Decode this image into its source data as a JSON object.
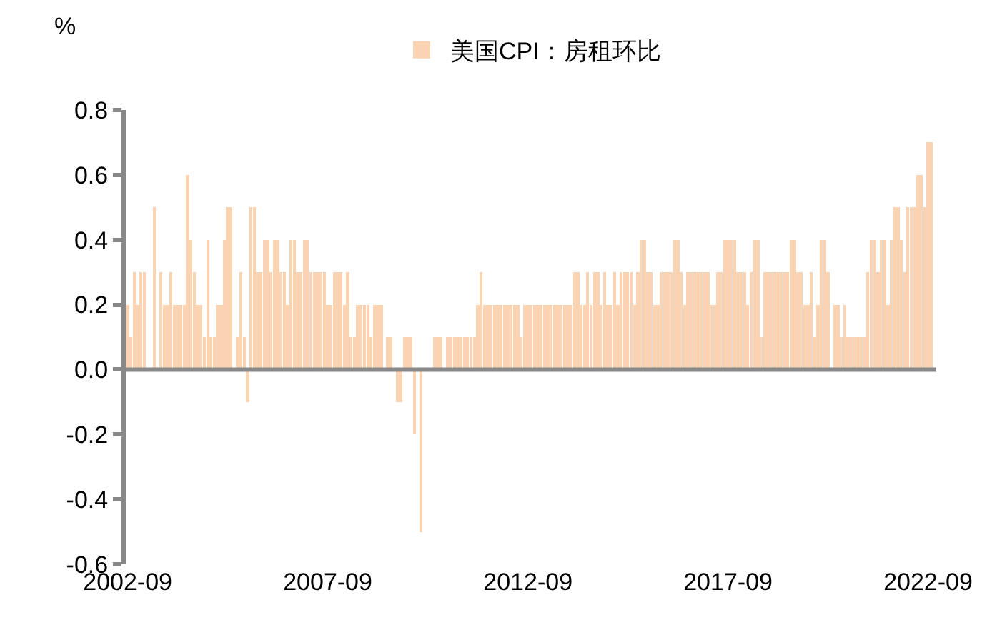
{
  "chart_data": {
    "type": "bar",
    "ylabel": "%",
    "legend": "top",
    "x": [
      "2002-09",
      "2002-10",
      "2002-11",
      "2002-12",
      "2003-01",
      "2003-02",
      "2003-03",
      "2003-04",
      "2003-05",
      "2003-06",
      "2003-07",
      "2003-08",
      "2003-09",
      "2003-10",
      "2003-11",
      "2003-12",
      "2004-01",
      "2004-02",
      "2004-03",
      "2004-04",
      "2004-05",
      "2004-06",
      "2004-07",
      "2004-08",
      "2004-09",
      "2004-10",
      "2004-11",
      "2004-12",
      "2005-01",
      "2005-02",
      "2005-03",
      "2005-04",
      "2005-05",
      "2005-06",
      "2005-07",
      "2005-08",
      "2005-09",
      "2005-10",
      "2005-11",
      "2005-12",
      "2006-01",
      "2006-02",
      "2006-03",
      "2006-04",
      "2006-05",
      "2006-06",
      "2006-07",
      "2006-08",
      "2006-09",
      "2006-10",
      "2006-11",
      "2006-12",
      "2007-01",
      "2007-02",
      "2007-03",
      "2007-04",
      "2007-05",
      "2007-06",
      "2007-07",
      "2007-08",
      "2007-09",
      "2007-10",
      "2007-11",
      "2007-12",
      "2008-01",
      "2008-02",
      "2008-03",
      "2008-04",
      "2008-05",
      "2008-06",
      "2008-07",
      "2008-08",
      "2008-09",
      "2008-10",
      "2008-11",
      "2008-12",
      "2009-01",
      "2009-02",
      "2009-03",
      "2009-04",
      "2009-05",
      "2009-06",
      "2009-07",
      "2009-08",
      "2009-09",
      "2009-10",
      "2009-11",
      "2009-12",
      "2010-01",
      "2010-02",
      "2010-03",
      "2010-04",
      "2010-05",
      "2010-06",
      "2010-07",
      "2010-08",
      "2010-09",
      "2010-10",
      "2010-11",
      "2010-12",
      "2011-01",
      "2011-02",
      "2011-03",
      "2011-04",
      "2011-05",
      "2011-06",
      "2011-07",
      "2011-08",
      "2011-09",
      "2011-10",
      "2011-11",
      "2011-12",
      "2012-01",
      "2012-02",
      "2012-03",
      "2012-04",
      "2012-05",
      "2012-06",
      "2012-07",
      "2012-08",
      "2012-09",
      "2012-10",
      "2012-11",
      "2012-12",
      "2013-01",
      "2013-02",
      "2013-03",
      "2013-04",
      "2013-05",
      "2013-06",
      "2013-07",
      "2013-08",
      "2013-09",
      "2013-10",
      "2013-11",
      "2013-12",
      "2014-01",
      "2014-02",
      "2014-03",
      "2014-04",
      "2014-05",
      "2014-06",
      "2014-07",
      "2014-08",
      "2014-09",
      "2014-10",
      "2014-11",
      "2014-12",
      "2015-01",
      "2015-02",
      "2015-03",
      "2015-04",
      "2015-05",
      "2015-06",
      "2015-07",
      "2015-08",
      "2015-09",
      "2015-10",
      "2015-11",
      "2015-12",
      "2016-01",
      "2016-02",
      "2016-03",
      "2016-04",
      "2016-05",
      "2016-06",
      "2016-07",
      "2016-08",
      "2016-09",
      "2016-10",
      "2016-11",
      "2016-12",
      "2017-01",
      "2017-02",
      "2017-03",
      "2017-04",
      "2017-05",
      "2017-06",
      "2017-07",
      "2017-08",
      "2017-09",
      "2017-10",
      "2017-11",
      "2017-12",
      "2018-01",
      "2018-02",
      "2018-03",
      "2018-04",
      "2018-05",
      "2018-06",
      "2018-07",
      "2018-08",
      "2018-09",
      "2018-10",
      "2018-11",
      "2018-12",
      "2019-01",
      "2019-02",
      "2019-03",
      "2019-04",
      "2019-05",
      "2019-06",
      "2019-07",
      "2019-08",
      "2019-09",
      "2019-10",
      "2019-11",
      "2019-12",
      "2020-01",
      "2020-02",
      "2020-03",
      "2020-04",
      "2020-05",
      "2020-06",
      "2020-07",
      "2020-08",
      "2020-09",
      "2020-10",
      "2020-11",
      "2020-12",
      "2021-01",
      "2021-02",
      "2021-03",
      "2021-04",
      "2021-05",
      "2021-06",
      "2021-07",
      "2021-08",
      "2021-09",
      "2021-10",
      "2021-11",
      "2021-12",
      "2022-01",
      "2022-02",
      "2022-03",
      "2022-04",
      "2022-05",
      "2022-06",
      "2022-07",
      "2022-08",
      "2022-09",
      "2022-10"
    ],
    "series": [
      {
        "name": "美国CPI：房租环比",
        "color": "#fad3b2",
        "values": [
          0.2,
          0.1,
          0.3,
          0.2,
          0.3,
          0.3,
          0,
          0,
          0.5,
          0,
          0.3,
          0.2,
          0.2,
          0.3,
          0.2,
          0.2,
          0.2,
          0.2,
          0.6,
          0.4,
          0.3,
          0.2,
          0.2,
          0.1,
          0.4,
          0.1,
          0.1,
          0.2,
          0.2,
          0.4,
          0.5,
          0.5,
          0,
          0.1,
          0.3,
          0.1,
          -0.1,
          0.5,
          0.5,
          0.3,
          0.3,
          0.4,
          0.4,
          0.3,
          0.4,
          0.4,
          0.3,
          0.3,
          0.2,
          0.4,
          0.4,
          0.3,
          0.3,
          0.4,
          0.4,
          0.3,
          0.3,
          0.3,
          0.3,
          0.3,
          0.2,
          0.2,
          0.3,
          0.3,
          0.3,
          0.2,
          0.3,
          0.1,
          0.1,
          0.2,
          0.2,
          0.2,
          0.2,
          0.1,
          0.2,
          0.2,
          0.2,
          0,
          0.1,
          0.1,
          0,
          -0.1,
          -0.1,
          0.1,
          0.1,
          0.1,
          -0.2,
          0,
          -0.5,
          0,
          0,
          0,
          0.1,
          0.1,
          0.1,
          0,
          0.1,
          0.1,
          0.1,
          0.1,
          0.1,
          0.1,
          0.1,
          0.1,
          0.1,
          0.2,
          0.3,
          0.2,
          0.2,
          0.2,
          0.2,
          0.2,
          0.2,
          0.2,
          0.2,
          0.2,
          0.2,
          0.2,
          0.1,
          0.2,
          0.2,
          0.2,
          0.2,
          0.2,
          0.2,
          0.2,
          0.2,
          0.2,
          0.2,
          0.2,
          0.2,
          0.2,
          0.2,
          0.2,
          0.3,
          0.3,
          0.2,
          0.2,
          0.3,
          0.2,
          0.3,
          0.3,
          0.2,
          0.3,
          0.2,
          0.2,
          0.3,
          0.2,
          0.3,
          0.3,
          0.3,
          0.3,
          0.2,
          0.3,
          0.4,
          0.4,
          0.3,
          0.3,
          0.2,
          0.2,
          0.3,
          0.3,
          0.3,
          0.3,
          0.4,
          0.4,
          0.3,
          0.2,
          0.3,
          0.3,
          0.3,
          0.3,
          0.3,
          0.3,
          0.3,
          0.2,
          0.2,
          0.3,
          0.3,
          0.4,
          0.4,
          0.4,
          0.4,
          0.3,
          0.3,
          0.3,
          0.2,
          0.3,
          0.4,
          0.4,
          0.1,
          0.3,
          0.3,
          0.3,
          0.3,
          0.3,
          0.3,
          0.3,
          0.3,
          0.4,
          0.4,
          0.3,
          0.3,
          0.2,
          0.2,
          0.3,
          0.1,
          0.2,
          0.4,
          0.4,
          0.3,
          0,
          0.2,
          0.2,
          0.1,
          0.2,
          0.1,
          0.1,
          0.1,
          0.1,
          0.1,
          0.1,
          0.3,
          0.4,
          0.4,
          0.3,
          0.4,
          0.4,
          0.2,
          0.4,
          0.5,
          0.5,
          0.4,
          0.3,
          0.5,
          0.5,
          0.5,
          0.6,
          0.6,
          0.5,
          0.7,
          0.7
        ]
      }
    ],
    "xlim": [
      "2002-08-15",
      "2022-11-15"
    ],
    "xticks": [
      "2002-09",
      "2007-09",
      "2012-09",
      "2017-09",
      "2022-09"
    ],
    "ylim": [
      -0.6,
      0.8
    ],
    "yticks": [
      -0.6,
      -0.4,
      -0.2,
      {
        "value": 0,
        "label": "0.0"
      },
      0.2,
      0.4,
      0.6,
      0.8
    ]
  }
}
